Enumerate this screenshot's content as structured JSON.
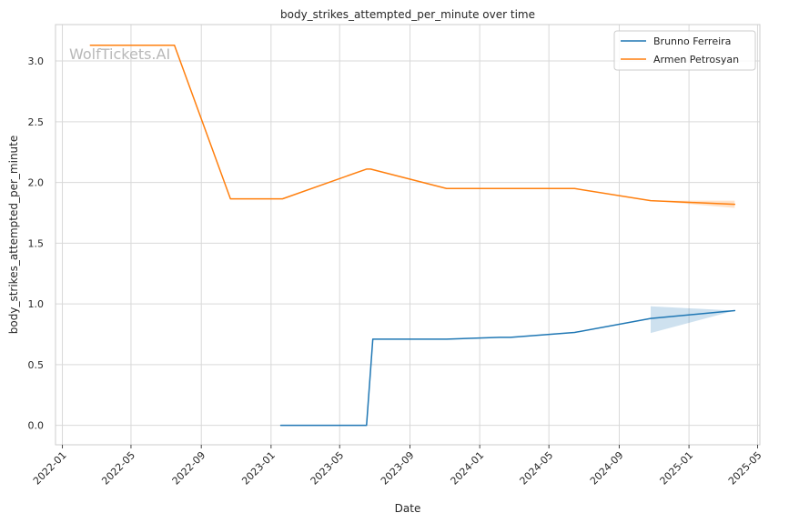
{
  "chart_data": {
    "type": "line",
    "title": "body_strikes_attempted_per_minute over time",
    "xlabel": "Date",
    "ylabel": "body_strikes_attempted_per_minute",
    "watermark": "WolfTickets.AI",
    "x_axis_type": "date",
    "xlim": [
      "2021-12-20",
      "2025-05-05"
    ],
    "ylim": [
      -0.16,
      3.3
    ],
    "x_ticks": [
      "2022-01",
      "2022-05",
      "2022-09",
      "2023-01",
      "2023-05",
      "2023-09",
      "2024-01",
      "2024-05",
      "2024-09",
      "2025-01",
      "2025-05"
    ],
    "y_ticks": [
      "0.0",
      "0.5",
      "1.0",
      "1.5",
      "2.0",
      "2.5",
      "3.0"
    ],
    "grid": true,
    "legend_position": "top-right",
    "series": [
      {
        "name": "Brunno Ferreira",
        "color": "#1f77b4",
        "points": [
          {
            "x": "2023-01-18",
            "y": 0.0
          },
          {
            "x": "2023-06-17",
            "y": 0.0
          },
          {
            "x": "2023-06-28",
            "y": 0.71
          },
          {
            "x": "2023-11-04",
            "y": 0.71
          },
          {
            "x": "2024-02-05",
            "y": 0.725
          },
          {
            "x": "2024-02-24",
            "y": 0.725
          },
          {
            "x": "2024-06-15",
            "y": 0.765
          },
          {
            "x": "2024-10-26",
            "y": 0.88
          },
          {
            "x": "2025-03-22",
            "y": 0.945
          }
        ],
        "band": [
          {
            "x": "2024-10-26",
            "low": 0.76,
            "high": 0.98
          },
          {
            "x": "2025-03-22",
            "low": 0.945,
            "high": 0.945
          }
        ]
      },
      {
        "name": "Armen Petrosyan",
        "color": "#ff7f0e",
        "points": [
          {
            "x": "2022-02-19",
            "y": 3.13
          },
          {
            "x": "2022-07-16",
            "y": 3.13
          },
          {
            "x": "2022-10-22",
            "y": 1.865
          },
          {
            "x": "2023-01-21",
            "y": 1.865
          },
          {
            "x": "2023-06-17",
            "y": 2.11
          },
          {
            "x": "2023-06-24",
            "y": 2.11
          },
          {
            "x": "2023-11-04",
            "y": 1.95
          },
          {
            "x": "2024-06-15",
            "y": 1.95
          },
          {
            "x": "2024-10-26",
            "y": 1.85
          },
          {
            "x": "2025-03-22",
            "y": 1.82
          }
        ],
        "band": [
          {
            "x": "2024-10-26",
            "low": 1.85,
            "high": 1.85
          },
          {
            "x": "2025-03-22",
            "low": 1.79,
            "high": 1.85
          }
        ]
      }
    ]
  }
}
